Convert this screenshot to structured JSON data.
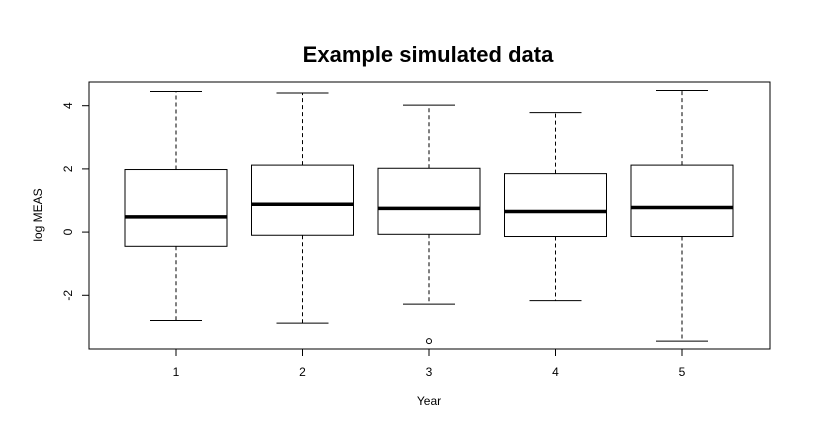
{
  "chart_data": {
    "type": "boxplot",
    "title": "Example simulated data",
    "xlabel": "Year",
    "ylabel": "log MEAS",
    "categories": [
      "1",
      "2",
      "3",
      "4",
      "5"
    ],
    "y_ticks": [
      -2,
      0,
      2,
      4
    ],
    "y_tick_labels": [
      "-2",
      "0",
      "2",
      "4"
    ],
    "ylim": [
      -3.7,
      4.75
    ],
    "grid": false,
    "boxes": [
      {
        "category": "1",
        "whisker_low": -2.8,
        "q1": -0.45,
        "median": 0.48,
        "q3": 1.98,
        "whisker_high": 4.45,
        "outliers": []
      },
      {
        "category": "2",
        "whisker_low": -2.88,
        "q1": -0.1,
        "median": 0.88,
        "q3": 2.12,
        "whisker_high": 4.4,
        "outliers": []
      },
      {
        "category": "3",
        "whisker_low": -2.28,
        "q1": -0.07,
        "median": 0.75,
        "q3": 2.02,
        "whisker_high": 4.02,
        "outliers": [
          -3.45
        ]
      },
      {
        "category": "4",
        "whisker_low": -2.17,
        "q1": -0.14,
        "median": 0.65,
        "q3": 1.85,
        "whisker_high": 3.78,
        "outliers": []
      },
      {
        "category": "5",
        "whisker_low": -3.45,
        "q1": -0.14,
        "median": 0.78,
        "q3": 2.12,
        "whisker_high": 4.48,
        "outliers": []
      }
    ]
  }
}
